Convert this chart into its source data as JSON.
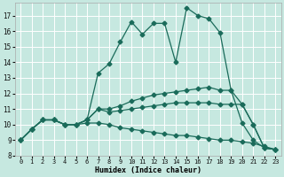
{
  "background_color": "#c6e8e0",
  "grid_color": "#ffffff",
  "line_color": "#1a6b5a",
  "marker": "D",
  "marker_size": 2.5,
  "xlabel": "Humidex (Indice chaleur)",
  "xlim": [
    -0.5,
    23.5
  ],
  "ylim": [
    8.0,
    17.8
  ],
  "xticks": [
    0,
    1,
    2,
    3,
    4,
    5,
    6,
    7,
    8,
    9,
    10,
    11,
    12,
    13,
    14,
    15,
    16,
    17,
    18,
    19,
    20,
    21,
    22,
    23
  ],
  "yticks": [
    8,
    9,
    10,
    11,
    12,
    13,
    14,
    15,
    16,
    17
  ],
  "lines": [
    {
      "x": [
        0,
        1,
        2,
        3,
        4,
        5,
        6,
        7,
        8,
        9,
        10,
        11,
        12,
        13,
        14,
        15,
        16,
        17,
        18,
        19,
        20,
        21,
        22,
        23
      ],
      "y": [
        9.0,
        9.7,
        10.3,
        10.3,
        10.0,
        10.0,
        10.3,
        13.3,
        13.9,
        15.3,
        16.6,
        15.8,
        16.5,
        16.5,
        14.0,
        17.5,
        17.0,
        16.8,
        15.9,
        12.2,
        10.1,
        9.0,
        8.5,
        8.4
      ]
    },
    {
      "x": [
        0,
        1,
        2,
        3,
        4,
        5,
        6,
        7,
        8,
        9,
        10,
        11,
        12,
        13,
        14,
        15,
        16,
        17,
        18,
        19,
        20,
        21,
        22,
        23
      ],
      "y": [
        9.0,
        9.7,
        10.3,
        10.3,
        10.0,
        10.0,
        10.3,
        11.0,
        11.0,
        11.2,
        11.5,
        11.7,
        11.9,
        12.0,
        12.1,
        12.2,
        12.3,
        12.4,
        12.2,
        12.2,
        11.3,
        10.0,
        8.5,
        8.4
      ]
    },
    {
      "x": [
        0,
        1,
        2,
        3,
        4,
        5,
        6,
        7,
        8,
        9,
        10,
        11,
        12,
        13,
        14,
        15,
        16,
        17,
        18,
        19,
        20,
        21,
        22,
        23
      ],
      "y": [
        9.0,
        9.7,
        10.3,
        10.3,
        10.0,
        10.0,
        10.3,
        11.0,
        10.8,
        10.9,
        11.0,
        11.1,
        11.2,
        11.3,
        11.4,
        11.4,
        11.4,
        11.4,
        11.3,
        11.3,
        11.3,
        10.0,
        8.5,
        8.4
      ]
    },
    {
      "x": [
        0,
        1,
        2,
        3,
        4,
        5,
        6,
        7,
        8,
        9,
        10,
        11,
        12,
        13,
        14,
        15,
        16,
        17,
        18,
        19,
        20,
        21,
        22,
        23
      ],
      "y": [
        9.0,
        9.7,
        10.3,
        10.3,
        10.0,
        10.0,
        10.1,
        10.1,
        10.0,
        9.8,
        9.7,
        9.6,
        9.5,
        9.4,
        9.3,
        9.3,
        9.2,
        9.1,
        9.0,
        9.0,
        8.9,
        8.8,
        8.6,
        8.4
      ]
    }
  ]
}
